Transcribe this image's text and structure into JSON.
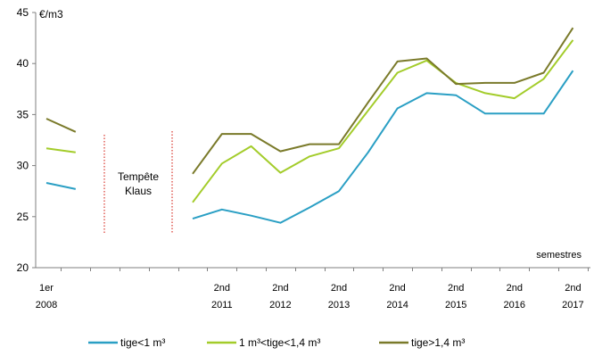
{
  "chart_data": {
    "type": "line",
    "ylabel": "€/m3",
    "xlabel": "semestres",
    "ylim": [
      20,
      45
    ],
    "yticks": [
      20,
      25,
      30,
      35,
      40,
      45
    ],
    "x_labels": [
      {
        "i": 0,
        "lines": [
          "1er",
          "2008"
        ]
      },
      {
        "i": 6,
        "lines": [
          "2nd",
          "2011"
        ]
      },
      {
        "i": 8,
        "lines": [
          "2nd",
          "2012"
        ]
      },
      {
        "i": 10,
        "lines": [
          "2nd",
          "2013"
        ]
      },
      {
        "i": 12,
        "lines": [
          "2nd",
          "2014"
        ]
      },
      {
        "i": 14,
        "lines": [
          "2nd",
          "2015"
        ]
      },
      {
        "i": 16,
        "lines": [
          "2nd",
          "2016"
        ]
      },
      {
        "i": 18,
        "lines": [
          "2nd",
          "2017"
        ]
      }
    ],
    "annotation": {
      "lines": [
        "Tempête",
        "Klaus"
      ]
    },
    "grid": false,
    "legend_position": "bottom",
    "series": [
      {
        "name": "tige<1 m³",
        "color": "#2a9fc4",
        "segments": [
          [
            [
              0,
              28.3
            ],
            [
              1,
              27.7
            ]
          ],
          [
            [
              5,
              24.8
            ],
            [
              6,
              25.7
            ],
            [
              7,
              25.1
            ],
            [
              8,
              24.4
            ],
            [
              9,
              25.9
            ],
            [
              10,
              27.5
            ],
            [
              11,
              31.3
            ],
            [
              12,
              35.6
            ],
            [
              13,
              37.1
            ],
            [
              14,
              36.9
            ],
            [
              15,
              35.1
            ],
            [
              16,
              35.1
            ],
            [
              17,
              35.1
            ],
            [
              18,
              39.3
            ]
          ]
        ]
      },
      {
        "name": "1 m³<tige<1,4 m³",
        "color": "#a3cc2a",
        "segments": [
          [
            [
              0,
              31.7
            ],
            [
              1,
              31.3
            ]
          ],
          [
            [
              5,
              26.4
            ],
            [
              6,
              30.2
            ],
            [
              7,
              31.9
            ],
            [
              8,
              29.3
            ],
            [
              9,
              30.9
            ],
            [
              10,
              31.7
            ],
            [
              11,
              35.4
            ],
            [
              12,
              39.1
            ],
            [
              13,
              40.3
            ],
            [
              14,
              38.1
            ],
            [
              15,
              37.1
            ],
            [
              16,
              36.6
            ],
            [
              17,
              38.5
            ],
            [
              18,
              42.3
            ]
          ]
        ]
      },
      {
        "name": "tige>1,4 m³",
        "color": "#7a7a2a",
        "segments": [
          [
            [
              0,
              34.6
            ],
            [
              1,
              33.3
            ]
          ],
          [
            [
              5,
              29.2
            ],
            [
              6,
              33.1
            ],
            [
              7,
              33.1
            ],
            [
              8,
              31.4
            ],
            [
              9,
              32.1
            ],
            [
              10,
              32.1
            ],
            [
              11,
              36.2
            ],
            [
              12,
              40.2
            ],
            [
              13,
              40.5
            ],
            [
              14,
              38.0
            ],
            [
              15,
              38.1
            ],
            [
              16,
              38.1
            ],
            [
              17,
              39.1
            ],
            [
              18,
              43.5
            ]
          ]
        ]
      }
    ]
  }
}
